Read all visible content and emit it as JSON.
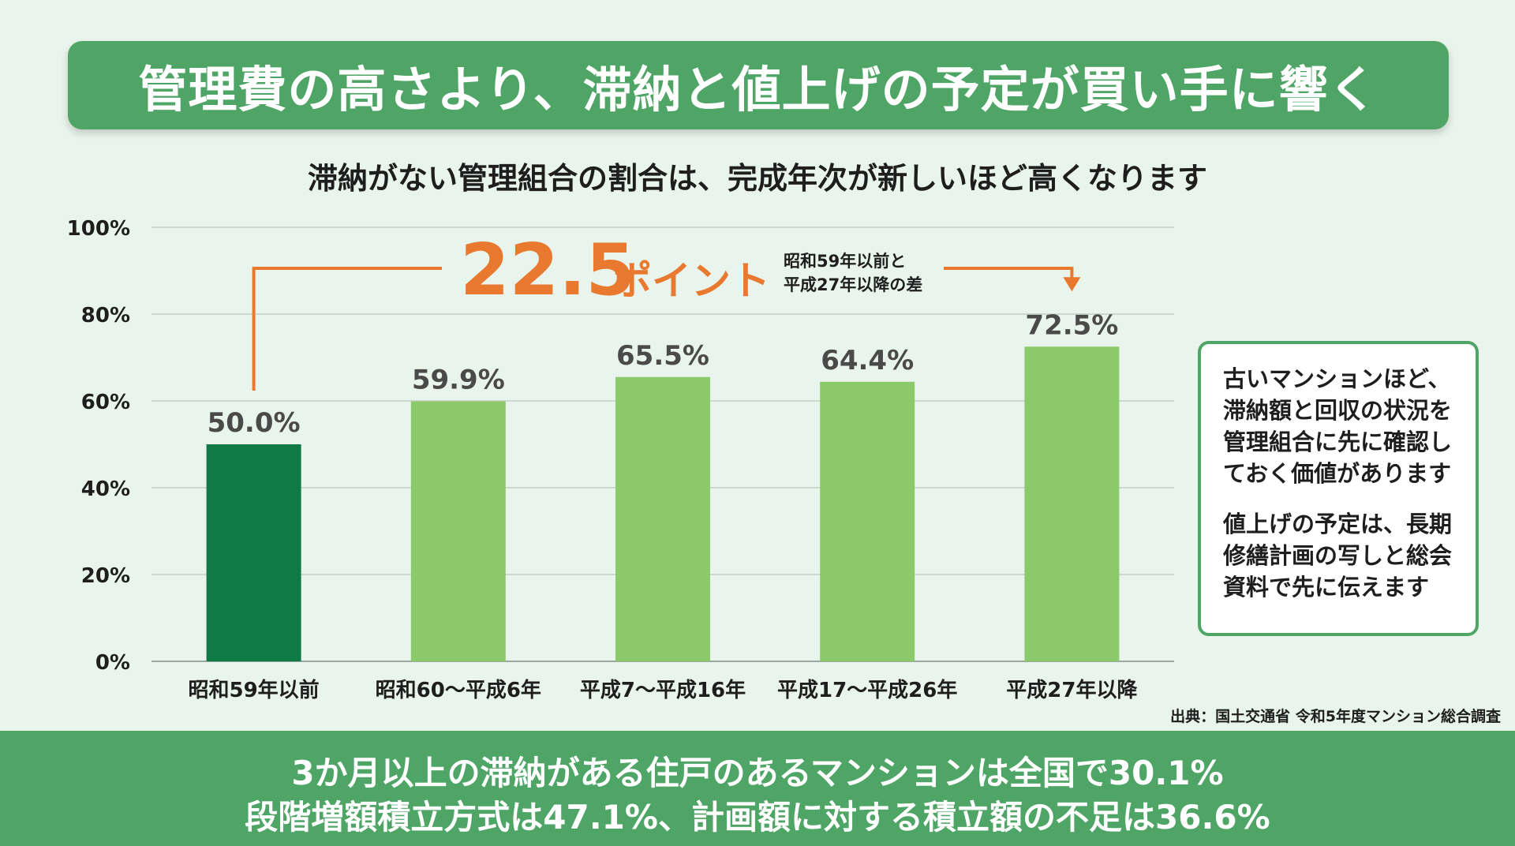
{
  "header": {
    "title": "管理費の高さより、滞納と値上げの予定が買い手に響く",
    "subtitle": "滞納がない管理組合の割合は、完成年次が新しいほど高くなります"
  },
  "chart_data": {
    "type": "bar",
    "categories": [
      "昭和59年以前",
      "昭和60〜平成6年",
      "平成7〜平成16年",
      "平成17〜平成26年",
      "平成27年以降"
    ],
    "values": [
      50.0,
      59.9,
      65.5,
      64.4,
      72.5
    ],
    "value_labels": [
      "50.0%",
      "59.9%",
      "65.5%",
      "64.4%",
      "72.5%"
    ],
    "ylim": [
      0,
      100
    ],
    "y_ticks": [
      0,
      20,
      40,
      60,
      80,
      100
    ],
    "y_tick_labels": [
      "0%",
      "20%",
      "40%",
      "60%",
      "80%",
      "100%"
    ],
    "grid": true,
    "colors": {
      "highlight_bar": "#0f7a45",
      "bar": "#8cc96a",
      "annotation": "#e8792e",
      "grid": "#bfcfc4"
    },
    "annotation": {
      "value": "22.5",
      "unit": "ポイント",
      "note_line1": "昭和59年以前と",
      "note_line2": "平成27年以降の差",
      "from_category_index": 0,
      "to_category_index": 4
    }
  },
  "note": {
    "para1": "古いマンションほど、\n滞納額と回収の状況を\n管理組合に先に確認し\nておく価値があります",
    "para2": "値上げの予定は、長期\n修繕計画の写しと総会\n資料で先に伝えます"
  },
  "source": "出典：国土交通省 令和5年度マンション総合調査",
  "footer": {
    "line1": "3か月以上の滞納がある住戸のあるマンションは全国で30.1%",
    "line2": "段階増額積立方式は47.1%、計画額に対する積立額の不足は36.6%"
  }
}
